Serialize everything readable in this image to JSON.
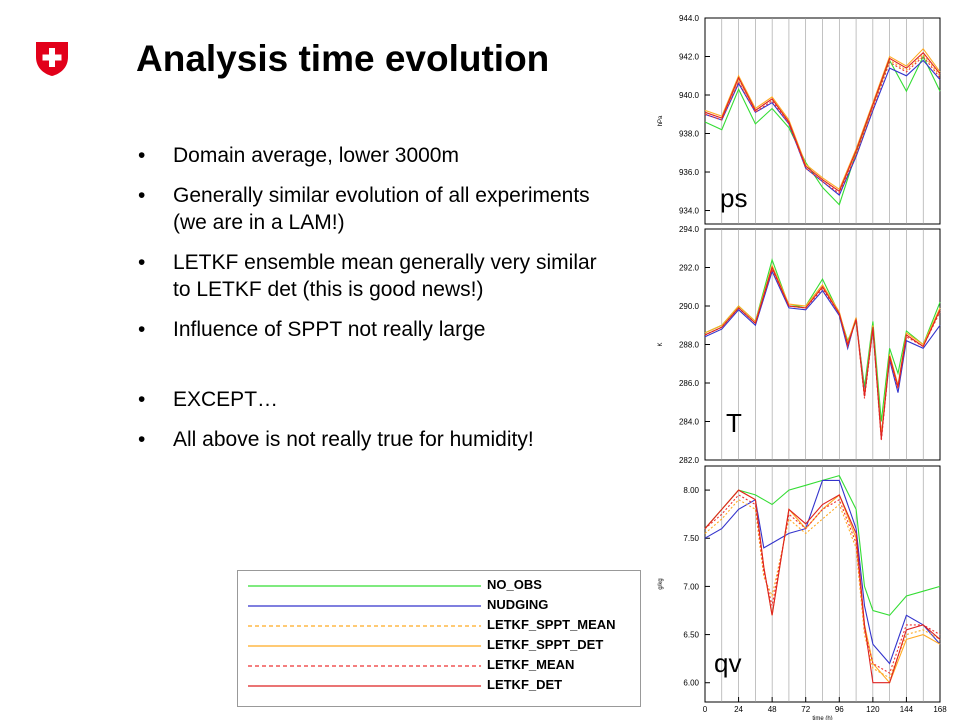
{
  "slide": {
    "title": "Analysis time evolution",
    "bullets": [
      "Domain average, lower 3000m",
      "Generally similar evolution of all experiments (we are in a LAM!)",
      "LETKF ensemble mean generally very similar to LETKF det (this is good news!)",
      "Influence of SPPT not really large",
      "EXCEPT…",
      "All above is not really true for humidity!"
    ]
  },
  "logo": {
    "name": "swiss-cross-shield",
    "color": "#e2001a"
  },
  "legend": [
    {
      "name": "NO_OBS",
      "color": "#33dd33",
      "dash": false
    },
    {
      "name": "NUDGING",
      "color": "#3333cc",
      "dash": false
    },
    {
      "name": "LETKF_SPPT_MEAN",
      "color": "#ffaa22",
      "dash": true
    },
    {
      "name": "LETKF_SPPT_DET",
      "color": "#ffaa22",
      "dash": false
    },
    {
      "name": "LETKF_MEAN",
      "color": "#ee3333",
      "dash": true
    },
    {
      "name": "LETKF_DET",
      "color": "#dd2222",
      "dash": false
    }
  ],
  "chart_data": [
    {
      "type": "line",
      "tag": "ps",
      "ylabel": "hPa",
      "xlabel": "",
      "ylim": [
        933.3,
        944.0
      ],
      "xlim": [
        0,
        168
      ],
      "yticks": [
        "944.0",
        "942.0",
        "940.0",
        "938.0",
        "936.0",
        "934.0"
      ],
      "ytick_values": [
        944,
        942,
        940,
        938,
        936,
        934
      ],
      "x": [
        0,
        12,
        24,
        36,
        48,
        60,
        72,
        84,
        96,
        108,
        120,
        132,
        144,
        156,
        168
      ],
      "series": [
        {
          "name": "NO_OBS",
          "values": [
            938.6,
            938.2,
            940.3,
            938.5,
            939.3,
            938.3,
            936.5,
            935.2,
            934.3,
            937.0,
            939.5,
            941.8,
            940.2,
            942.0,
            940.2
          ]
        },
        {
          "name": "NUDGING",
          "values": [
            939.0,
            938.7,
            940.6,
            939.1,
            939.6,
            938.5,
            936.2,
            935.5,
            934.8,
            936.8,
            939.2,
            941.4,
            941.0,
            941.8,
            940.8
          ]
        },
        {
          "name": "LETKF_SPPT_MEAN",
          "values": [
            939.1,
            938.8,
            940.8,
            939.2,
            939.8,
            938.6,
            936.3,
            935.6,
            935.0,
            937.0,
            939.4,
            941.8,
            941.3,
            942.1,
            941.0
          ]
        },
        {
          "name": "LETKF_SPPT_DET",
          "values": [
            939.2,
            938.9,
            941.0,
            939.3,
            939.9,
            938.7,
            936.4,
            935.7,
            935.1,
            937.2,
            939.6,
            942.0,
            941.5,
            942.4,
            941.2
          ]
        },
        {
          "name": "LETKF_MEAN",
          "values": [
            939.0,
            938.7,
            940.7,
            939.1,
            939.7,
            938.5,
            936.2,
            935.5,
            934.9,
            936.9,
            939.3,
            941.7,
            941.2,
            942.0,
            940.9
          ]
        },
        {
          "name": "LETKF_DET",
          "values": [
            939.1,
            938.8,
            940.9,
            939.2,
            939.8,
            938.6,
            936.3,
            935.6,
            935.0,
            937.1,
            939.5,
            941.9,
            941.4,
            942.2,
            941.1
          ]
        }
      ]
    },
    {
      "type": "line",
      "tag": "T",
      "ylabel": "K",
      "xlabel": "",
      "ylim": [
        282.0,
        294.0
      ],
      "xlim": [
        0,
        168
      ],
      "yticks": [
        "294.0",
        "292.0",
        "290.0",
        "288.0",
        "286.0",
        "284.0",
        "282.0"
      ],
      "ytick_values": [
        294,
        292,
        290,
        288,
        286,
        284,
        282
      ],
      "x": [
        0,
        12,
        24,
        36,
        48,
        60,
        72,
        84,
        96,
        102,
        108,
        114,
        120,
        126,
        132,
        138,
        144,
        156,
        168
      ],
      "series": [
        {
          "name": "NO_OBS",
          "values": [
            288.6,
            289.0,
            290.0,
            289.2,
            292.4,
            290.0,
            290.0,
            291.4,
            289.6,
            288.2,
            289.2,
            285.8,
            289.2,
            284.0,
            287.8,
            286.5,
            288.7,
            288.0,
            290.2
          ]
        },
        {
          "name": "NUDGING",
          "values": [
            288.4,
            288.8,
            289.8,
            289.0,
            291.8,
            289.9,
            289.8,
            290.8,
            289.5,
            287.8,
            289.4,
            285.5,
            288.8,
            283.3,
            287.2,
            285.5,
            288.2,
            287.8,
            289.0
          ]
        },
        {
          "name": "LETKF_SPPT_MEAN",
          "values": [
            288.5,
            288.9,
            289.9,
            289.1,
            292.0,
            290.0,
            289.9,
            291.0,
            289.6,
            288.0,
            289.3,
            285.3,
            288.9,
            283.2,
            287.4,
            285.8,
            288.5,
            287.9,
            289.8
          ]
        },
        {
          "name": "LETKF_SPPT_DET",
          "values": [
            288.6,
            289.0,
            290.0,
            289.2,
            292.1,
            290.1,
            290.0,
            291.1,
            289.7,
            288.1,
            289.4,
            285.4,
            289.0,
            283.3,
            287.5,
            285.9,
            288.6,
            288.0,
            289.9
          ]
        },
        {
          "name": "LETKF_MEAN",
          "values": [
            288.5,
            288.9,
            289.9,
            289.1,
            291.9,
            290.0,
            289.9,
            290.9,
            289.6,
            287.9,
            289.3,
            285.2,
            288.8,
            283.0,
            287.3,
            285.7,
            288.4,
            287.9,
            289.7
          ]
        },
        {
          "name": "LETKF_DET",
          "values": [
            288.5,
            288.9,
            289.9,
            289.1,
            292.0,
            290.0,
            289.9,
            291.0,
            289.6,
            288.0,
            289.3,
            285.3,
            288.9,
            283.1,
            287.4,
            285.8,
            288.5,
            287.9,
            289.8
          ]
        }
      ]
    },
    {
      "type": "line",
      "tag": "qv",
      "ylabel": "g/kg",
      "xlabel": "time (h)",
      "ylim": [
        5.8,
        8.25
      ],
      "xlim": [
        0,
        168
      ],
      "yticks": [
        "8.00",
        "7.50",
        "7.00",
        "6.50",
        "6.00"
      ],
      "ytick_values": [
        8.0,
        7.5,
        7.0,
        6.5,
        6.0
      ],
      "xticks": [
        "0",
        "24",
        "48",
        "72",
        "96",
        "120",
        "144",
        "168"
      ],
      "xtick_values": [
        0,
        24,
        48,
        72,
        96,
        120,
        144,
        168
      ],
      "x": [
        0,
        12,
        24,
        36,
        42,
        48,
        60,
        72,
        84,
        96,
        108,
        114,
        120,
        132,
        144,
        156,
        168
      ],
      "series": [
        {
          "name": "NO_OBS",
          "values": [
            7.6,
            7.8,
            8.0,
            7.95,
            7.9,
            7.85,
            8.0,
            8.05,
            8.1,
            8.15,
            7.8,
            7.0,
            6.75,
            6.7,
            6.9,
            6.95,
            7.0
          ]
        },
        {
          "name": "NUDGING",
          "values": [
            7.5,
            7.6,
            7.8,
            7.9,
            7.4,
            7.45,
            7.55,
            7.6,
            8.1,
            8.1,
            7.6,
            6.8,
            6.4,
            6.2,
            6.7,
            6.6,
            6.4
          ]
        },
        {
          "name": "LETKF_SPPT_MEAN",
          "values": [
            7.55,
            7.7,
            7.9,
            7.8,
            7.1,
            6.9,
            7.7,
            7.55,
            7.7,
            7.85,
            7.4,
            6.5,
            6.15,
            6.05,
            6.5,
            6.55,
            6.45
          ]
        },
        {
          "name": "LETKF_SPPT_DET",
          "values": [
            7.6,
            7.8,
            8.0,
            7.9,
            7.2,
            6.7,
            7.8,
            7.6,
            7.8,
            7.95,
            7.5,
            6.6,
            6.2,
            6.0,
            6.45,
            6.5,
            6.4
          ]
        },
        {
          "name": "LETKF_MEAN",
          "values": [
            7.6,
            7.75,
            7.95,
            7.85,
            7.15,
            6.8,
            7.75,
            7.6,
            7.8,
            7.9,
            7.45,
            6.55,
            6.2,
            6.1,
            6.6,
            6.6,
            6.5
          ]
        },
        {
          "name": "LETKF_DET",
          "values": [
            7.6,
            7.8,
            8.0,
            7.9,
            7.2,
            6.7,
            7.8,
            7.65,
            7.85,
            7.95,
            7.55,
            6.6,
            6.0,
            6.0,
            6.55,
            6.6,
            6.45
          ]
        }
      ]
    }
  ]
}
